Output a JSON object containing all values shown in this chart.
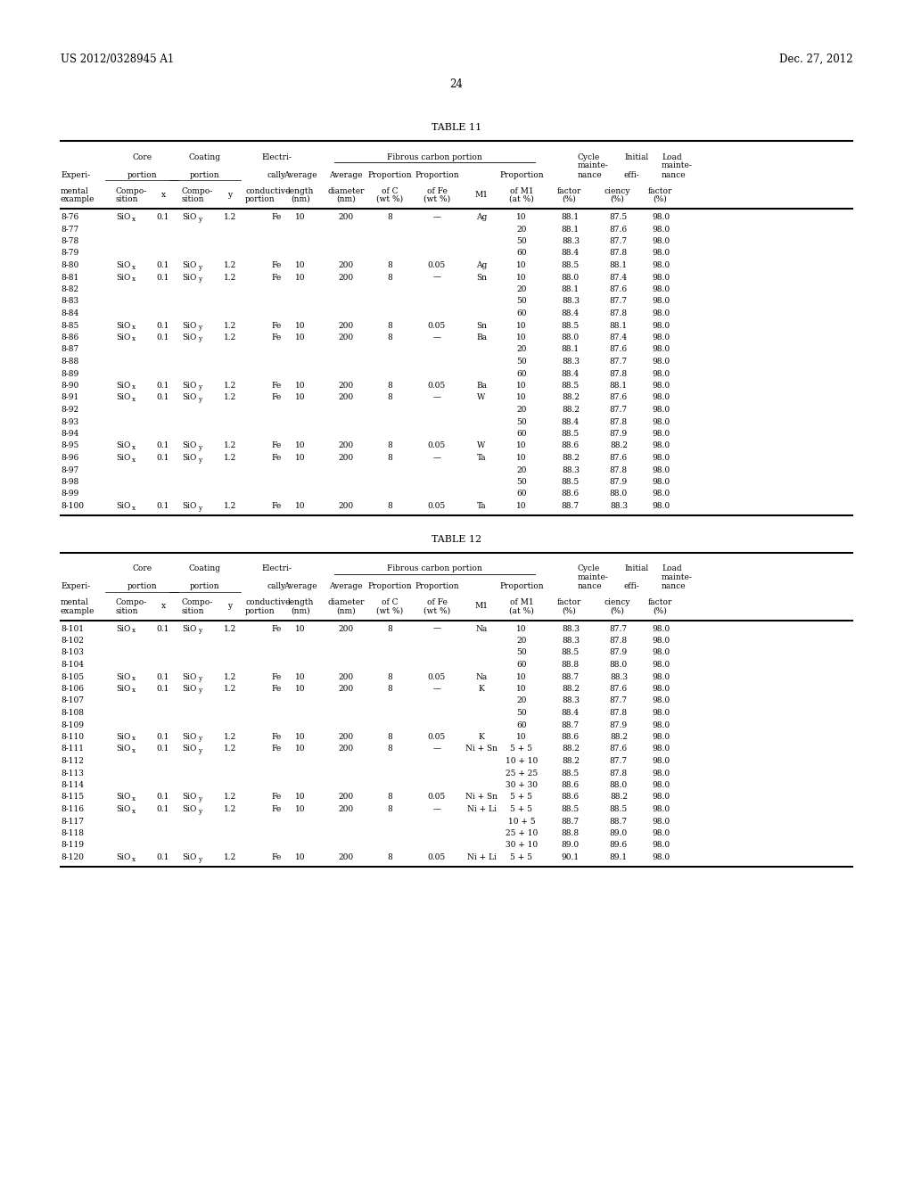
{
  "header_left": "US 2012/0328945 A1",
  "header_right": "Dec. 27, 2012",
  "page_number": "24",
  "background_color": "#ffffff",
  "table11_title": "TABLE 11",
  "table12_title": "TABLE 12",
  "table11_rows": [
    [
      "8-76",
      "SiOx",
      "0.1",
      "SiOy",
      "1.2",
      "Fe",
      "10",
      "200",
      "8",
      "—",
      "Ag",
      "10",
      "88.1",
      "87.5",
      "98.0"
    ],
    [
      "8-77",
      "",
      "",
      "",
      "",
      "",
      "",
      "",
      "",
      "",
      "",
      "20",
      "88.1",
      "87.6",
      "98.0"
    ],
    [
      "8-78",
      "",
      "",
      "",
      "",
      "",
      "",
      "",
      "",
      "",
      "",
      "50",
      "88.3",
      "87.7",
      "98.0"
    ],
    [
      "8-79",
      "",
      "",
      "",
      "",
      "",
      "",
      "",
      "",
      "",
      "",
      "60",
      "88.4",
      "87.8",
      "98.0"
    ],
    [
      "8-80",
      "SiOx",
      "0.1",
      "SiOy",
      "1.2",
      "Fe",
      "10",
      "200",
      "8",
      "0.05",
      "Ag",
      "10",
      "88.5",
      "88.1",
      "98.0"
    ],
    [
      "8-81",
      "SiOx",
      "0.1",
      "SiOy",
      "1.2",
      "Fe",
      "10",
      "200",
      "8",
      "—",
      "Sn",
      "10",
      "88.0",
      "87.4",
      "98.0"
    ],
    [
      "8-82",
      "",
      "",
      "",
      "",
      "",
      "",
      "",
      "",
      "",
      "",
      "20",
      "88.1",
      "87.6",
      "98.0"
    ],
    [
      "8-83",
      "",
      "",
      "",
      "",
      "",
      "",
      "",
      "",
      "",
      "",
      "50",
      "88.3",
      "87.7",
      "98.0"
    ],
    [
      "8-84",
      "",
      "",
      "",
      "",
      "",
      "",
      "",
      "",
      "",
      "",
      "60",
      "88.4",
      "87.8",
      "98.0"
    ],
    [
      "8-85",
      "SiOx",
      "0.1",
      "SiOy",
      "1.2",
      "Fe",
      "10",
      "200",
      "8",
      "0.05",
      "Sn",
      "10",
      "88.5",
      "88.1",
      "98.0"
    ],
    [
      "8-86",
      "SiOx",
      "0.1",
      "SiOy",
      "1.2",
      "Fe",
      "10",
      "200",
      "8",
      "—",
      "Ba",
      "10",
      "88.0",
      "87.4",
      "98.0"
    ],
    [
      "8-87",
      "",
      "",
      "",
      "",
      "",
      "",
      "",
      "",
      "",
      "",
      "20",
      "88.1",
      "87.6",
      "98.0"
    ],
    [
      "8-88",
      "",
      "",
      "",
      "",
      "",
      "",
      "",
      "",
      "",
      "",
      "50",
      "88.3",
      "87.7",
      "98.0"
    ],
    [
      "8-89",
      "",
      "",
      "",
      "",
      "",
      "",
      "",
      "",
      "",
      "",
      "60",
      "88.4",
      "87.8",
      "98.0"
    ],
    [
      "8-90",
      "SiOx",
      "0.1",
      "SiOy",
      "1.2",
      "Fe",
      "10",
      "200",
      "8",
      "0.05",
      "Ba",
      "10",
      "88.5",
      "88.1",
      "98.0"
    ],
    [
      "8-91",
      "SiOx",
      "0.1",
      "SiOy",
      "1.2",
      "Fe",
      "10",
      "200",
      "8",
      "—",
      "W",
      "10",
      "88.2",
      "87.6",
      "98.0"
    ],
    [
      "8-92",
      "",
      "",
      "",
      "",
      "",
      "",
      "",
      "",
      "",
      "",
      "20",
      "88.2",
      "87.7",
      "98.0"
    ],
    [
      "8-93",
      "",
      "",
      "",
      "",
      "",
      "",
      "",
      "",
      "",
      "",
      "50",
      "88.4",
      "87.8",
      "98.0"
    ],
    [
      "8-94",
      "",
      "",
      "",
      "",
      "",
      "",
      "",
      "",
      "",
      "",
      "60",
      "88.5",
      "87.9",
      "98.0"
    ],
    [
      "8-95",
      "SiOx",
      "0.1",
      "SiOy",
      "1.2",
      "Fe",
      "10",
      "200",
      "8",
      "0.05",
      "W",
      "10",
      "88.6",
      "88.2",
      "98.0"
    ],
    [
      "8-96",
      "SiOx",
      "0.1",
      "SiOy",
      "1.2",
      "Fe",
      "10",
      "200",
      "8",
      "—",
      "Ta",
      "10",
      "88.2",
      "87.6",
      "98.0"
    ],
    [
      "8-97",
      "",
      "",
      "",
      "",
      "",
      "",
      "",
      "",
      "",
      "",
      "20",
      "88.3",
      "87.8",
      "98.0"
    ],
    [
      "8-98",
      "",
      "",
      "",
      "",
      "",
      "",
      "",
      "",
      "",
      "",
      "50",
      "88.5",
      "87.9",
      "98.0"
    ],
    [
      "8-99",
      "",
      "",
      "",
      "",
      "",
      "",
      "",
      "",
      "",
      "",
      "60",
      "88.6",
      "88.0",
      "98.0"
    ],
    [
      "8-100",
      "SiOx",
      "0.1",
      "SiOy",
      "1.2",
      "Fe",
      "10",
      "200",
      "8",
      "0.05",
      "Ta",
      "10",
      "88.7",
      "88.3",
      "98.0"
    ]
  ],
  "table12_rows": [
    [
      "8-101",
      "SiOx",
      "0.1",
      "SiOy",
      "1.2",
      "Fe",
      "10",
      "200",
      "8",
      "—",
      "Na",
      "10",
      "88.3",
      "87.7",
      "98.0"
    ],
    [
      "8-102",
      "",
      "",
      "",
      "",
      "",
      "",
      "",
      "",
      "",
      "",
      "20",
      "88.3",
      "87.8",
      "98.0"
    ],
    [
      "8-103",
      "",
      "",
      "",
      "",
      "",
      "",
      "",
      "",
      "",
      "",
      "50",
      "88.5",
      "87.9",
      "98.0"
    ],
    [
      "8-104",
      "",
      "",
      "",
      "",
      "",
      "",
      "",
      "",
      "",
      "",
      "60",
      "88.8",
      "88.0",
      "98.0"
    ],
    [
      "8-105",
      "SiOx",
      "0.1",
      "SiOy",
      "1.2",
      "Fe",
      "10",
      "200",
      "8",
      "0.05",
      "Na",
      "10",
      "88.7",
      "88.3",
      "98.0"
    ],
    [
      "8-106",
      "SiOx",
      "0.1",
      "SiOy",
      "1.2",
      "Fe",
      "10",
      "200",
      "8",
      "—",
      "K",
      "10",
      "88.2",
      "87.6",
      "98.0"
    ],
    [
      "8-107",
      "",
      "",
      "",
      "",
      "",
      "",
      "",
      "",
      "",
      "",
      "20",
      "88.3",
      "87.7",
      "98.0"
    ],
    [
      "8-108",
      "",
      "",
      "",
      "",
      "",
      "",
      "",
      "",
      "",
      "",
      "50",
      "88.4",
      "87.8",
      "98.0"
    ],
    [
      "8-109",
      "",
      "",
      "",
      "",
      "",
      "",
      "",
      "",
      "",
      "",
      "60",
      "88.7",
      "87.9",
      "98.0"
    ],
    [
      "8-110",
      "SiOx",
      "0.1",
      "SiOy",
      "1.2",
      "Fe",
      "10",
      "200",
      "8",
      "0.05",
      "K",
      "10",
      "88.6",
      "88.2",
      "98.0"
    ],
    [
      "8-111",
      "SiOx",
      "0.1",
      "SiOy",
      "1.2",
      "Fe",
      "10",
      "200",
      "8",
      "—",
      "Ni + Sn",
      "5 + 5",
      "88.2",
      "87.6",
      "98.0"
    ],
    [
      "8-112",
      "",
      "",
      "",
      "",
      "",
      "",
      "",
      "",
      "",
      "",
      "10 + 10",
      "88.2",
      "87.7",
      "98.0"
    ],
    [
      "8-113",
      "",
      "",
      "",
      "",
      "",
      "",
      "",
      "",
      "",
      "",
      "25 + 25",
      "88.5",
      "87.8",
      "98.0"
    ],
    [
      "8-114",
      "",
      "",
      "",
      "",
      "",
      "",
      "",
      "",
      "",
      "",
      "30 + 30",
      "88.6",
      "88.0",
      "98.0"
    ],
    [
      "8-115",
      "SiOx",
      "0.1",
      "SiOy",
      "1.2",
      "Fe",
      "10",
      "200",
      "8",
      "0.05",
      "Ni + Sn",
      "5 + 5",
      "88.6",
      "88.2",
      "98.0"
    ],
    [
      "8-116",
      "SiOx",
      "0.1",
      "SiOy",
      "1.2",
      "Fe",
      "10",
      "200",
      "8",
      "—",
      "Ni + Li",
      "5 + 5",
      "88.5",
      "88.5",
      "98.0"
    ],
    [
      "8-117",
      "",
      "",
      "",
      "",
      "",
      "",
      "",
      "",
      "",
      "",
      "10 + 5",
      "88.7",
      "88.7",
      "98.0"
    ],
    [
      "8-118",
      "",
      "",
      "",
      "",
      "",
      "",
      "",
      "",
      "",
      "",
      "25 + 10",
      "88.8",
      "89.0",
      "98.0"
    ],
    [
      "8-119",
      "",
      "",
      "",
      "",
      "",
      "",
      "",
      "",
      "",
      "",
      "30 + 10",
      "89.0",
      "89.6",
      "98.0"
    ],
    [
      "8-120",
      "SiOx",
      "0.1",
      "SiOy",
      "1.2",
      "Fe",
      "10",
      "200",
      "8",
      "0.05",
      "Ni + Li",
      "5 + 5",
      "90.1",
      "89.1",
      "98.0"
    ]
  ]
}
